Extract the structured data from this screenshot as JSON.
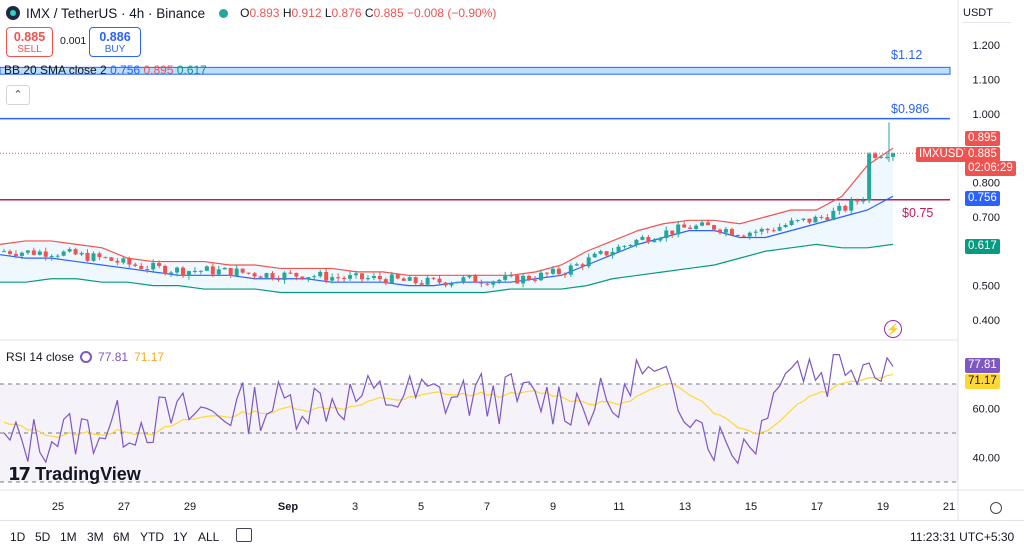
{
  "header": {
    "symbol_title": "IMX / TetherUS · 4h · Binance",
    "ohlc": {
      "o_label": "O",
      "o_value": "0.893",
      "h_label": "H",
      "h_value": "0.912",
      "l_label": "L",
      "l_value": "0.876",
      "c_label": "C",
      "c_value": "0.885",
      "change": "−0.008 (−0.90%)"
    },
    "sell_price": "0.885",
    "sell_label": "SELL",
    "spread": "0.001",
    "buy_price": "0.886",
    "buy_label": "BUY"
  },
  "currency": "USDT",
  "indicators": {
    "bb_legend": "BB 20 SMA close 2",
    "bb_basis": "0.756",
    "bb_upper": "0.895",
    "bb_lower": "0.617",
    "rsi_legend": "RSI 14 close",
    "rsi_value": "77.81",
    "rsi_ma": "71.17"
  },
  "price_axis": {
    "ticks": [
      "1.200",
      "1.100",
      "1.000",
      "0.800",
      "0.700",
      "0.500",
      "0.400"
    ],
    "tick_values": [
      1.2,
      1.1,
      1.0,
      0.8,
      0.7,
      0.5,
      0.4
    ],
    "labels": {
      "upper": "0.895",
      "symbol": "IMXUSDT",
      "last": "0.885",
      "countdown": "02:06:29",
      "basis": "0.756",
      "lower": "0.617"
    }
  },
  "rsi_axis": {
    "ticks": [
      "60.00",
      "40.00"
    ],
    "tick_values": [
      60,
      40
    ],
    "current": "77.81",
    "ma": "71.17"
  },
  "annotations": {
    "level_high": "$1.12",
    "level_mid": "$0.986",
    "level_low": "$0.75"
  },
  "time_axis": {
    "labels": [
      "25",
      "27",
      "29",
      "Sep",
      "3",
      "5",
      "7",
      "9",
      "11",
      "13",
      "15",
      "17",
      "19",
      "21"
    ]
  },
  "branding": "TradingView",
  "bottom_bar": {
    "timeframes": [
      "1D",
      "5D",
      "1M",
      "3M",
      "6M",
      "YTD",
      "1Y",
      "ALL"
    ],
    "clock": "11:23:31 UTC+5:30"
  },
  "colors": {
    "up": "#26a69a",
    "down": "#ef5350",
    "bb_upper": "#ef5350",
    "bb_basis": "#2962ff",
    "bb_lower": "#089981",
    "rsi": "#7e57c2",
    "rsi_ma": "#fdd835",
    "level_blue": "#2962ff",
    "level_red": "#c2185b"
  },
  "chart_data": {
    "type": "candlestick",
    "price_scale": {
      "min": 0.37,
      "max": 1.23
    },
    "series": [
      {
        "name": "BB upper",
        "values": [
          0.62,
          0.63,
          0.63,
          0.62,
          0.61,
          0.58,
          0.57,
          0.57,
          0.57,
          0.56,
          0.56,
          0.55,
          0.55,
          0.55,
          0.54,
          0.54,
          0.53,
          0.53,
          0.53,
          0.53,
          0.53,
          0.54,
          0.56,
          0.6,
          0.63,
          0.66,
          0.68,
          0.69,
          0.69,
          0.68,
          0.7,
          0.72,
          0.72,
          0.76,
          0.85,
          0.9
        ]
      },
      {
        "name": "BB basis",
        "values": [
          0.59,
          0.58,
          0.58,
          0.57,
          0.56,
          0.55,
          0.54,
          0.53,
          0.53,
          0.53,
          0.52,
          0.52,
          0.52,
          0.51,
          0.51,
          0.51,
          0.5,
          0.5,
          0.51,
          0.51,
          0.51,
          0.52,
          0.53,
          0.56,
          0.59,
          0.62,
          0.64,
          0.66,
          0.66,
          0.64,
          0.64,
          0.66,
          0.68,
          0.7,
          0.72,
          0.76
        ]
      },
      {
        "name": "BB lower",
        "values": [
          0.51,
          0.51,
          0.52,
          0.52,
          0.51,
          0.51,
          0.5,
          0.5,
          0.49,
          0.49,
          0.49,
          0.48,
          0.48,
          0.48,
          0.48,
          0.48,
          0.48,
          0.48,
          0.48,
          0.48,
          0.49,
          0.49,
          0.49,
          0.5,
          0.52,
          0.53,
          0.54,
          0.55,
          0.56,
          0.58,
          0.6,
          0.61,
          0.62,
          0.61,
          0.61,
          0.62
        ]
      }
    ]
  }
}
